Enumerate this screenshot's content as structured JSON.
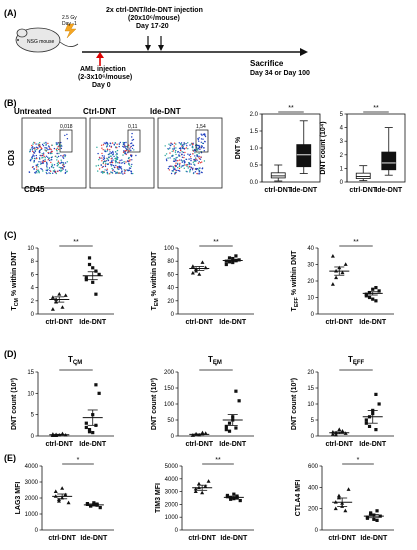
{
  "panel_labels": {
    "a": "(A)",
    "b": "(B)",
    "c": "(C)",
    "d": "(D)",
    "e": "(E)"
  },
  "timeline": {
    "mouse_label": "NSG mouse",
    "irradiation": "2.5 Gy",
    "irradiation_day": "Day -1",
    "injection_title": "2x ctrl-DNT/Ide-DNT injection",
    "injection_dose": "(20x10⁶/mouse)",
    "injection_days": "Day 17-20",
    "aml_title": "AML injection",
    "aml_dose": "(2-3x10⁶/mouse)",
    "aml_day": "Day 0",
    "sacrifice": "Sacrifice",
    "sacrifice_days": "Day 34 or Day 100"
  },
  "flow": {
    "y_axis": "CD3",
    "x_axis": "CD45",
    "plots": [
      {
        "title": "Untreated",
        "gate_value": "0,018"
      },
      {
        "title": "Ctrl-DNT",
        "gate_value": "0,11"
      },
      {
        "title": "Ide-DNT",
        "gate_value": "1,54"
      }
    ]
  },
  "chart_data": [
    {
      "id": "b1",
      "type": "box",
      "ylabel": "DNT %",
      "categories": [
        "ctrl-DNT",
        "Ide-DNT"
      ],
      "ticks": [
        "0.0",
        "0.5",
        "1.0",
        "1.5",
        "2.0"
      ],
      "ylim": [
        0,
        2.0
      ],
      "boxes": [
        {
          "min": 0.03,
          "q1": 0.12,
          "median": 0.18,
          "q3": 0.27,
          "max": 0.5
        },
        {
          "min": 0.25,
          "q1": 0.45,
          "median": 0.8,
          "q3": 1.1,
          "max": 1.8
        }
      ],
      "significance": "**"
    },
    {
      "id": "b2",
      "type": "box",
      "ylabel": "DNT count (10⁴)",
      "categories": [
        "ctrl-DNT",
        "Ide-DNT"
      ],
      "ticks": [
        "0",
        "1",
        "2",
        "3",
        "4",
        "5"
      ],
      "ylim": [
        0,
        5
      ],
      "boxes": [
        {
          "min": 0.1,
          "q1": 0.25,
          "median": 0.4,
          "q3": 0.65,
          "max": 1.2
        },
        {
          "min": 0.5,
          "q1": 0.9,
          "median": 1.4,
          "q3": 2.2,
          "max": 4.0
        }
      ],
      "significance": "**"
    },
    {
      "id": "c1",
      "type": "scatter",
      "ylabel": "T_CM % within DNT",
      "categories": [
        "ctrl-DNT",
        "Ide-DNT"
      ],
      "ticks": [
        "0",
        "2",
        "4",
        "6",
        "8",
        "10"
      ],
      "ylim": [
        0,
        10
      ],
      "significance": "**",
      "groups": [
        {
          "points": [
            2.5,
            2.2,
            3.0,
            1.0,
            2.8,
            0.7,
            1.8
          ],
          "mean": 2.2,
          "sem": 0.4
        },
        {
          "points": [
            5.5,
            7.5,
            4.8,
            3.0,
            6.0,
            5.2,
            8.5,
            7.0,
            6.5
          ],
          "mean": 5.8,
          "sem": 0.6
        }
      ]
    },
    {
      "id": "c2",
      "type": "scatter",
      "ylabel": "T_EM % within DNT",
      "categories": [
        "ctrl-DNT",
        "Ide-DNT"
      ],
      "ticks": [
        "0",
        "20",
        "40",
        "60",
        "80",
        "100"
      ],
      "ylim": [
        0,
        100
      ],
      "significance": "**",
      "groups": [
        {
          "points": [
            72,
            65,
            60,
            78,
            70,
            62,
            68
          ],
          "mean": 69,
          "sem": 3
        },
        {
          "points": [
            80,
            85,
            78,
            88,
            82,
            75,
            79,
            84,
            81
          ],
          "mean": 81,
          "sem": 2
        }
      ]
    },
    {
      "id": "c3",
      "type": "scatter",
      "ylabel": "T_EFF % within DNT",
      "categories": [
        "ctrl-DNT",
        "Ide-DNT"
      ],
      "ticks": [
        "0",
        "10",
        "20",
        "30",
        "40"
      ],
      "ylim": [
        0,
        40
      ],
      "significance": "**",
      "groups": [
        {
          "points": [
            35,
            22,
            28,
            25,
            30,
            18,
            26
          ],
          "mean": 26,
          "sem": 2.5
        },
        {
          "points": [
            12,
            10,
            15,
            8,
            14,
            11,
            13,
            9,
            16
          ],
          "mean": 12.5,
          "sem": 1
        }
      ]
    },
    {
      "id": "d1",
      "type": "scatter",
      "title": "T_CM",
      "ylabel": "DNT count (10³)",
      "categories": [
        "ctrl-DNT",
        "Ide-DNT"
      ],
      "ticks": [
        "0",
        "5",
        "10",
        "15"
      ],
      "ylim": [
        0,
        15
      ],
      "significance": "*",
      "groups": [
        {
          "points": [
            0.1,
            0.3,
            0.2,
            0.5,
            0.2,
            0.4,
            0.1
          ],
          "mean": 0.3,
          "sem": 0.1
        },
        {
          "points": [
            2,
            1,
            5,
            12,
            10,
            3,
            1.5,
            0.8,
            2.5
          ],
          "mean": 4.3,
          "sem": 1.8
        }
      ]
    },
    {
      "id": "d2",
      "type": "scatter",
      "title": "T_EM",
      "ylabel": "DNT count (10³)",
      "categories": [
        "ctrl-DNT",
        "Ide-DNT"
      ],
      "ticks": [
        "0",
        "50",
        "100",
        "150",
        "200"
      ],
      "ylim": [
        0,
        200
      ],
      "significance": "*",
      "groups": [
        {
          "points": [
            2,
            5,
            3,
            10,
            8,
            2,
            6
          ],
          "mean": 5,
          "sem": 1.5
        },
        {
          "points": [
            20,
            40,
            60,
            140,
            110,
            30,
            15,
            50,
            25
          ],
          "mean": 50,
          "sem": 17
        }
      ]
    },
    {
      "id": "d3",
      "type": "scatter",
      "title": "T_EFF",
      "ylabel": "DNT count (10³)",
      "categories": [
        "ctrl-DNT",
        "Ide-DNT"
      ],
      "ticks": [
        "0",
        "5",
        "10",
        "15",
        "20"
      ],
      "ylim": [
        0,
        20
      ],
      "significance": "*",
      "groups": [
        {
          "points": [
            0.5,
            1,
            2,
            1.5,
            0.8,
            1.2,
            0.3
          ],
          "mean": 1,
          "sem": 0.3
        },
        {
          "points": [
            4,
            6,
            8,
            13,
            10,
            5,
            3,
            7,
            2
          ],
          "mean": 6,
          "sem": 2
        }
      ]
    },
    {
      "id": "e1",
      "type": "scatter",
      "ylabel": "LAG3 MFI",
      "categories": [
        "ctrl-DNT",
        "Ide-DNT"
      ],
      "ticks": [
        "0",
        "1000",
        "2000",
        "3000",
        "4000"
      ],
      "ylim": [
        0,
        4000
      ],
      "significance": "*",
      "groups": [
        {
          "points": [
            2100,
            1800,
            2600,
            2200,
            1700,
            2400,
            1900,
            2000
          ],
          "mean": 2100,
          "sem": 150
        },
        {
          "points": [
            1600,
            1500,
            1700,
            1550,
            1400,
            1650,
            1500,
            1580,
            1620
          ],
          "mean": 1570,
          "sem": 60
        }
      ]
    },
    {
      "id": "e2",
      "type": "scatter",
      "ylabel": "TIM3 MFI",
      "categories": [
        "ctrl-DNT",
        "Ide-DNT"
      ],
      "ticks": [
        "0",
        "1000",
        "2000",
        "3000",
        "4000",
        "5000"
      ],
      "ylim": [
        0,
        5000
      ],
      "significance": "**",
      "groups": [
        {
          "points": [
            3200,
            3600,
            2900,
            3400,
            3800,
            3000,
            3300
          ],
          "mean": 3300,
          "sem": 200
        },
        {
          "points": [
            2600,
            2400,
            2800,
            2500,
            2300,
            2700,
            2550,
            2450,
            2650
          ],
          "mean": 2550,
          "sem": 80
        }
      ]
    },
    {
      "id": "e3",
      "type": "scatter",
      "ylabel": "CTLA4 MFI",
      "categories": [
        "ctrl-DNT",
        "Ide-DNT"
      ],
      "ticks": [
        "0",
        "200",
        "400",
        "600"
      ],
      "ylim": [
        0,
        600
      ],
      "significance": "*",
      "groups": [
        {
          "points": [
            200,
            320,
            250,
            180,
            380,
            260,
            300,
            220
          ],
          "mean": 260,
          "sem": 40
        },
        {
          "points": [
            120,
            150,
            100,
            180,
            130,
            110,
            160,
            140,
            90
          ],
          "mean": 130,
          "sem": 15
        }
      ]
    }
  ]
}
